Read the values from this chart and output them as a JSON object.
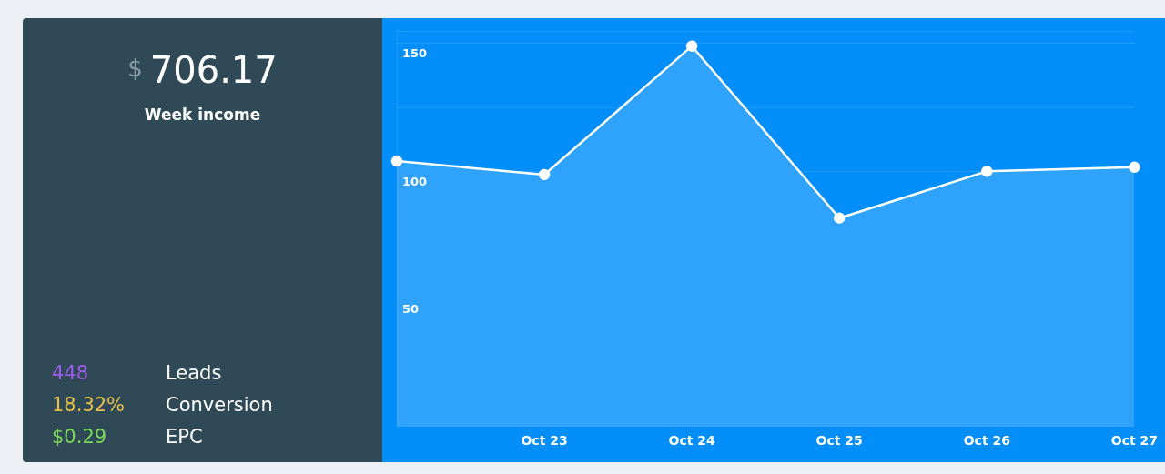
{
  "chart_data": [
    {
      "type": "other",
      "title": "$ 706.17",
      "subtitle": "Week income",
      "annotations": [
        "448",
        "Leads",
        "18.32%",
        "Conversion",
        "$0.29",
        "EPC"
      ]
    },
    {
      "type": "area",
      "categories": [
        null,
        "Oct 23",
        "Oct 24",
        "Oct 25",
        "Oct 26",
        "Oct 27"
      ],
      "series": [
        {
          "color": "#2fa3fb",
          "values": [
            104,
            98.7,
            149,
            81.7,
            100,
            101.6
          ]
        }
      ],
      "ylim": [
        0,
        155
      ],
      "yticks": [
        {
          "value": 25,
          "label": null
        },
        50,
        {
          "value": 75,
          "label": null
        },
        100,
        {
          "value": 125,
          "label": null
        },
        150
      ],
      "grid": "y",
      "legend": false,
      "marker": "circle"
    }
  ]
}
